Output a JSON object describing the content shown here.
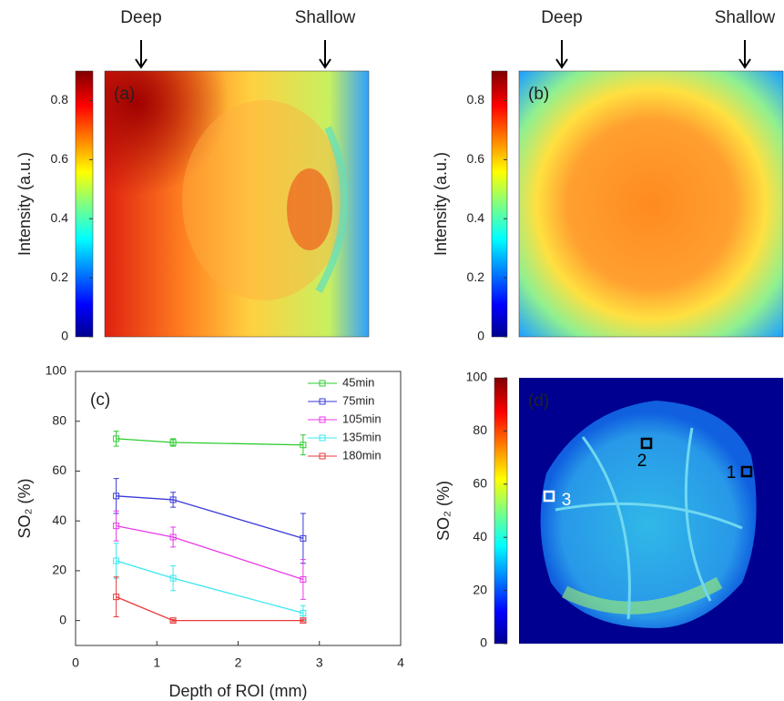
{
  "chart_data": [
    {
      "type": "image",
      "label": "(a)",
      "annotations": [
        "Deep",
        "Shallow"
      ],
      "colorbar": {
        "label": "Intensity (a.u.)",
        "ylim": [
          0,
          0.9
        ],
        "yticks": [
          0,
          0.2,
          0.4,
          0.6,
          0.8
        ]
      }
    },
    {
      "type": "image",
      "label": "(b)",
      "annotations": [
        "Deep",
        "Shallow"
      ],
      "colorbar": {
        "label": "Intensity (a.u.)",
        "ylim": [
          0,
          0.9
        ],
        "yticks": [
          0,
          0.2,
          0.4,
          0.6,
          0.8
        ]
      }
    },
    {
      "type": "line",
      "label": "(c)",
      "x_label": "Depth of ROI (mm)",
      "y_label": "SO₂ (%)",
      "xlim": [
        0,
        4
      ],
      "xticks": [
        0,
        1,
        2,
        3,
        4
      ],
      "ylim": [
        -10,
        100
      ],
      "yticks": [
        0,
        20,
        40,
        60,
        80,
        100
      ],
      "x": [
        0.5,
        1.2,
        2.8
      ],
      "series": [
        {
          "name": "45min",
          "color": "#2ecc2e",
          "values": [
            73,
            71.5,
            70.5
          ],
          "errors": [
            3,
            1.5,
            4
          ]
        },
        {
          "name": "75min",
          "color": "#3a3ad8",
          "values": [
            50,
            48.5,
            33
          ],
          "errors": [
            7,
            3,
            10
          ]
        },
        {
          "name": "105min",
          "color": "#e83ae8",
          "values": [
            38,
            33.5,
            16.5
          ],
          "errors": [
            6,
            4,
            8
          ]
        },
        {
          "name": "135min",
          "color": "#3ae8f0",
          "values": [
            24,
            17,
            3
          ],
          "errors": [
            7,
            5,
            3
          ]
        },
        {
          "name": "180min",
          "color": "#e83a3a",
          "values": [
            9.5,
            0,
            0
          ],
          "errors": [
            8,
            0.5,
            0.5
          ]
        }
      ]
    },
    {
      "type": "image",
      "label": "(d)",
      "roi_labels": [
        "1",
        "2",
        "3"
      ],
      "colorbar": {
        "label": "SO₂ (%)",
        "ylim": [
          0,
          100
        ],
        "yticks": [
          0,
          20,
          40,
          60,
          80,
          100
        ]
      }
    }
  ]
}
